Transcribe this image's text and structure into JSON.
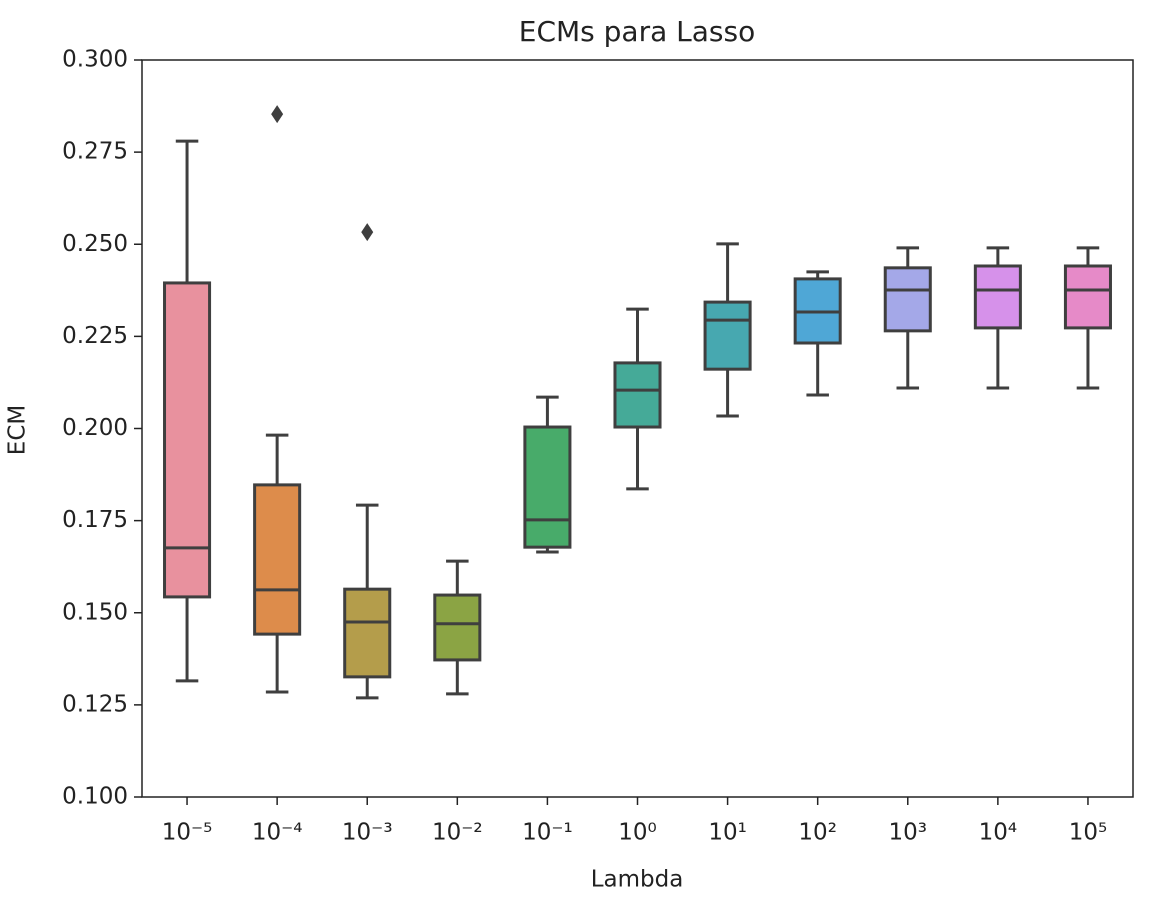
{
  "chart_data": {
    "type": "box",
    "title": "ECMs para Lasso",
    "x_label": "Lambda",
    "y_label": "ECM",
    "categories": [
      "10⁻⁵",
      "10⁻⁴",
      "10⁻³",
      "10⁻²",
      "10⁻¹",
      "10⁰",
      "10¹",
      "10²",
      "10³",
      "10⁴",
      "10⁵"
    ],
    "boxes": [
      {
        "whislo": 0.1315,
        "q1": 0.1543,
        "med": 0.1676,
        "q3": 0.2395,
        "whishi": 0.278,
        "color": "#e8919e"
      },
      {
        "whislo": 0.1285,
        "q1": 0.1442,
        "med": 0.1562,
        "q3": 0.1847,
        "whishi": 0.1982,
        "fliers": [
          0.2853
        ],
        "color": "#dd8c4b"
      },
      {
        "whislo": 0.1269,
        "q1": 0.1326,
        "med": 0.1475,
        "q3": 0.1564,
        "whishi": 0.1792,
        "fliers": [
          0.2533
        ],
        "color": "#b49d4b"
      },
      {
        "whislo": 0.128,
        "q1": 0.1372,
        "med": 0.147,
        "q3": 0.1548,
        "whishi": 0.164,
        "color": "#8ba444"
      },
      {
        "whislo": 0.1665,
        "q1": 0.1678,
        "med": 0.1752,
        "q3": 0.2004,
        "whishi": 0.2085,
        "color": "#48ab6a"
      },
      {
        "whislo": 0.1836,
        "q1": 0.2004,
        "med": 0.2104,
        "q3": 0.2178,
        "whishi": 0.2324,
        "color": "#45aa98"
      },
      {
        "whislo": 0.2034,
        "q1": 0.2161,
        "med": 0.2294,
        "q3": 0.2343,
        "whishi": 0.2501,
        "color": "#47a8b0"
      },
      {
        "whislo": 0.2091,
        "q1": 0.2232,
        "med": 0.2316,
        "q3": 0.2406,
        "whishi": 0.2425,
        "color": "#4fa7d6"
      },
      {
        "whislo": 0.211,
        "q1": 0.2265,
        "med": 0.2376,
        "q3": 0.2436,
        "whishi": 0.249,
        "color": "#a4a8e8"
      },
      {
        "whislo": 0.211,
        "q1": 0.2273,
        "med": 0.2376,
        "q3": 0.2441,
        "whishi": 0.249,
        "color": "#d691ea"
      },
      {
        "whislo": 0.211,
        "q1": 0.2273,
        "med": 0.2376,
        "q3": 0.2441,
        "whishi": 0.249,
        "color": "#e68ac8"
      }
    ],
    "ylim": [
      0.1,
      0.3
    ],
    "yticks": [
      {
        "value": 0.1,
        "label": "0.100"
      },
      {
        "value": 0.125,
        "label": "0.125"
      },
      {
        "value": 0.15,
        "label": "0.150"
      },
      {
        "value": 0.175,
        "label": "0.175"
      },
      {
        "value": 0.2,
        "label": "0.200"
      },
      {
        "value": 0.225,
        "label": "0.225"
      },
      {
        "value": 0.25,
        "label": "0.250"
      },
      {
        "value": 0.275,
        "label": "0.275"
      },
      {
        "value": 0.3,
        "label": "0.300"
      }
    ]
  }
}
